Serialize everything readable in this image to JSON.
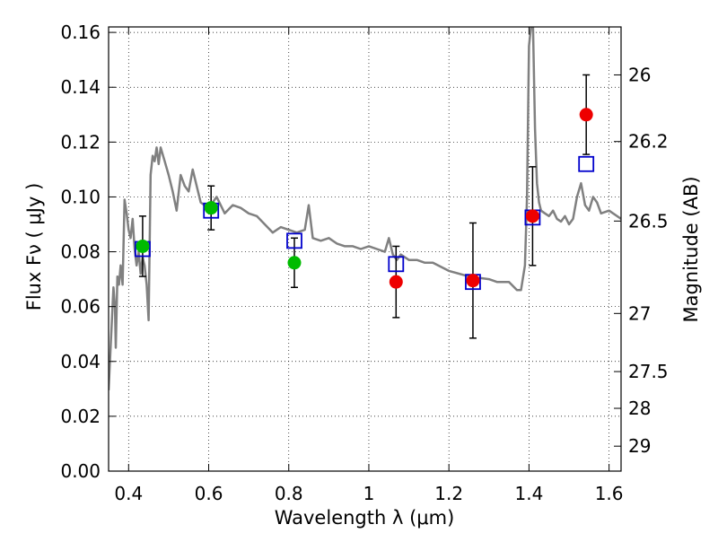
{
  "chart_data": {
    "type": "scatter",
    "xlabel": "Wavelength  λ (μm)",
    "ylabel": "Flux  Fν  ( μJy )",
    "ylabel_right": "Magnitude (AB)",
    "xlim": [
      0.35,
      1.63
    ],
    "ylim": [
      0.0,
      0.162
    ],
    "grid": true,
    "x_ticks": [
      0.4,
      0.6,
      0.8,
      1.0,
      1.2,
      1.4,
      1.6
    ],
    "x_tick_labels": [
      "0.4",
      "0.6",
      "0.8",
      "1",
      "1.2",
      "1.4",
      "1.6"
    ],
    "y_ticks": [
      0.0,
      0.02,
      0.04,
      0.06,
      0.08,
      0.1,
      0.12,
      0.14,
      0.16
    ],
    "y_tick_labels": [
      "0.00",
      "0.02",
      "0.04",
      "0.06",
      "0.08",
      "0.10",
      "0.12",
      "0.14",
      "0.16"
    ],
    "right_ticks": [
      {
        "label": "26",
        "flux": 0.1445
      },
      {
        "label": "26.2",
        "flux": 0.1202
      },
      {
        "label": "26.5",
        "flux": 0.0912
      },
      {
        "label": "27",
        "flux": 0.0575
      },
      {
        "label": "27.5",
        "flux": 0.0363
      },
      {
        "label": "28",
        "flux": 0.0229
      },
      {
        "label": "29",
        "flux": 0.0091
      }
    ],
    "observed_green": {
      "color": "#00bb00",
      "points": [
        {
          "x": 0.435,
          "y": 0.082,
          "err": 0.011
        },
        {
          "x": 0.606,
          "y": 0.096,
          "err": 0.008
        },
        {
          "x": 0.814,
          "y": 0.076,
          "err": 0.009
        }
      ]
    },
    "observed_red": {
      "color": "#ee0000",
      "points": [
        {
          "x": 1.068,
          "y": 0.069,
          "err": 0.013
        },
        {
          "x": 1.26,
          "y": 0.0695,
          "err": 0.021
        },
        {
          "x": 1.409,
          "y": 0.093,
          "err": 0.018
        },
        {
          "x": 1.543,
          "y": 0.13,
          "err": 0.0145
        }
      ]
    },
    "model_photometry": {
      "color": "#0000cc",
      "points": [
        {
          "x": 0.435,
          "y": 0.081
        },
        {
          "x": 0.606,
          "y": 0.095
        },
        {
          "x": 0.814,
          "y": 0.084
        },
        {
          "x": 1.068,
          "y": 0.0755
        },
        {
          "x": 1.26,
          "y": 0.069
        },
        {
          "x": 1.409,
          "y": 0.0925
        },
        {
          "x": 1.543,
          "y": 0.112
        }
      ]
    },
    "template_spectrum": {
      "color": "#808080",
      "x": [
        0.35,
        0.362,
        0.366,
        0.368,
        0.372,
        0.376,
        0.38,
        0.385,
        0.39,
        0.395,
        0.4,
        0.405,
        0.41,
        0.415,
        0.42,
        0.425,
        0.43,
        0.435,
        0.44,
        0.445,
        0.45,
        0.455,
        0.46,
        0.465,
        0.47,
        0.475,
        0.48,
        0.49,
        0.5,
        0.51,
        0.52,
        0.53,
        0.54,
        0.55,
        0.56,
        0.58,
        0.6,
        0.62,
        0.64,
        0.66,
        0.68,
        0.7,
        0.72,
        0.74,
        0.76,
        0.78,
        0.8,
        0.82,
        0.84,
        0.85,
        0.86,
        0.88,
        0.9,
        0.92,
        0.94,
        0.96,
        0.98,
        1.0,
        1.02,
        1.04,
        1.05,
        1.06,
        1.07,
        1.08,
        1.1,
        1.12,
        1.14,
        1.16,
        1.2,
        1.25,
        1.3,
        1.32,
        1.35,
        1.37,
        1.38,
        1.39,
        1.395,
        1.4,
        1.405,
        1.41,
        1.415,
        1.42,
        1.425,
        1.43,
        1.44,
        1.45,
        1.46,
        1.47,
        1.48,
        1.49,
        1.5,
        1.51,
        1.52,
        1.53,
        1.54,
        1.55,
        1.56,
        1.57,
        1.58,
        1.6,
        1.63
      ],
      "y": [
        0.0295,
        0.067,
        0.06,
        0.045,
        0.071,
        0.068,
        0.075,
        0.068,
        0.099,
        0.094,
        0.088,
        0.085,
        0.092,
        0.081,
        0.075,
        0.08,
        0.072,
        0.078,
        0.075,
        0.068,
        0.055,
        0.108,
        0.115,
        0.113,
        0.118,
        0.112,
        0.118,
        0.113,
        0.108,
        0.102,
        0.095,
        0.108,
        0.104,
        0.102,
        0.11,
        0.098,
        0.096,
        0.1,
        0.094,
        0.097,
        0.096,
        0.094,
        0.093,
        0.09,
        0.087,
        0.089,
        0.088,
        0.087,
        0.088,
        0.097,
        0.085,
        0.084,
        0.085,
        0.083,
        0.082,
        0.082,
        0.081,
        0.082,
        0.081,
        0.08,
        0.085,
        0.079,
        0.077,
        0.079,
        0.077,
        0.077,
        0.076,
        0.076,
        0.073,
        0.071,
        0.07,
        0.069,
        0.069,
        0.066,
        0.066,
        0.075,
        0.1,
        0.155,
        0.162,
        0.162,
        0.125,
        0.105,
        0.098,
        0.095,
        0.094,
        0.093,
        0.095,
        0.092,
        0.091,
        0.093,
        0.09,
        0.092,
        0.1,
        0.105,
        0.097,
        0.095,
        0.1,
        0.098,
        0.094,
        0.095,
        0.092
      ]
    }
  }
}
